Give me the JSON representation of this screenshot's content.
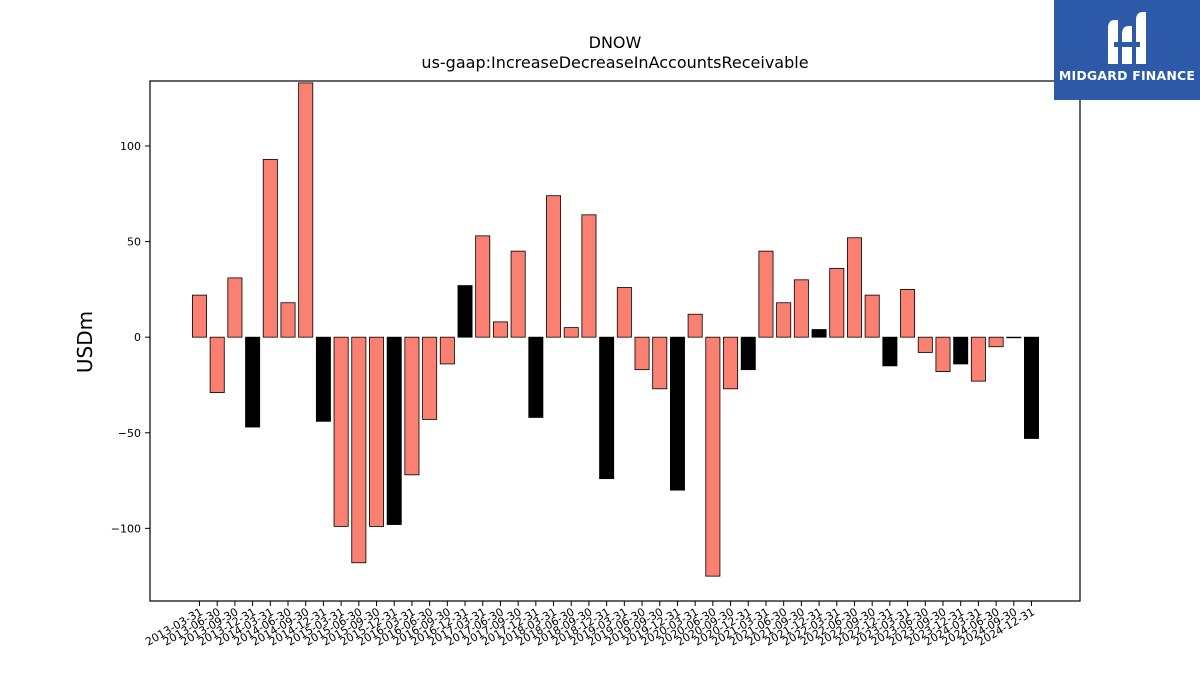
{
  "brand": {
    "name": "MIDGARD FINANCE",
    "color": "#2d5aa8"
  },
  "chart_data": {
    "type": "bar",
    "title": "DNOW",
    "subtitle": "us-gaap:IncreaseDecreaseInAccountsReceivable",
    "xlabel": "",
    "ylabel": "USDm",
    "ylim": [
      -138,
      134
    ],
    "yticks": [
      -100,
      -50,
      0,
      50,
      100
    ],
    "grid": false,
    "colors": {
      "quarter": "#fa8072",
      "year_end": "#000000"
    },
    "categories": [
      "2013-03-31",
      "2013-06-30",
      "2013-09-30",
      "2013-12-31",
      "2014-03-31",
      "2014-06-30",
      "2014-09-30",
      "2014-12-31",
      "2015-03-31",
      "2015-06-30",
      "2015-09-30",
      "2015-12-31",
      "2016-03-31",
      "2016-06-30",
      "2016-09-30",
      "2016-12-31",
      "2017-03-31",
      "2017-06-30",
      "2017-09-30",
      "2017-12-31",
      "2018-03-31",
      "2018-06-30",
      "2018-09-30",
      "2018-12-31",
      "2019-03-31",
      "2019-06-30",
      "2019-09-30",
      "2019-12-31",
      "2020-03-31",
      "2020-06-30",
      "2020-09-30",
      "2020-12-31",
      "2021-03-31",
      "2021-06-30",
      "2021-09-30",
      "2021-12-31",
      "2022-03-31",
      "2022-06-30",
      "2022-09-30",
      "2022-12-31",
      "2023-03-31",
      "2023-06-30",
      "2023-09-30",
      "2023-12-31",
      "2024-03-31",
      "2024-06-30",
      "2024-09-30",
      "2024-12-31"
    ],
    "values": [
      22,
      -29,
      31,
      -47,
      93,
      18,
      133,
      -44,
      -99,
      -118,
      -99,
      -98,
      -72,
      -43,
      -14,
      27,
      53,
      8,
      45,
      -42,
      74,
      5,
      64,
      -74,
      26,
      -17,
      -27,
      -80,
      12,
      -125,
      -27,
      -17,
      45,
      18,
      30,
      4,
      36,
      52,
      22,
      -15,
      25,
      -8,
      -18,
      -14,
      -23,
      -5,
      0,
      -53
    ]
  }
}
